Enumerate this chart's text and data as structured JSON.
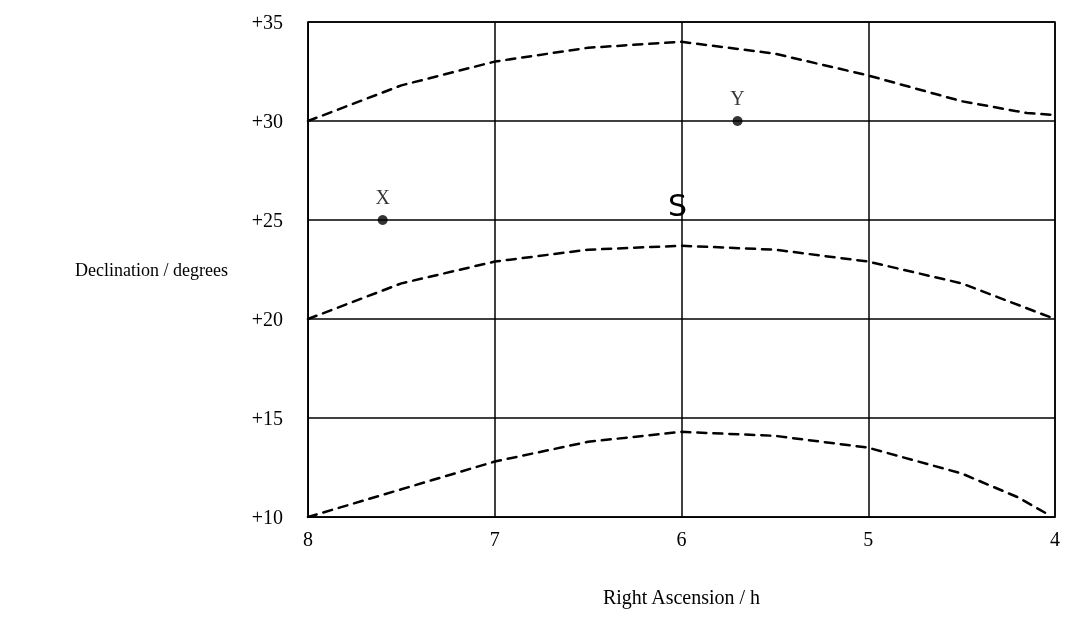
{
  "chart_data": {
    "type": "line",
    "xlabel": "Right Ascension / h",
    "ylabel": "Declination / degrees",
    "xlim": [
      8,
      4
    ],
    "xticks": [
      8,
      7,
      6,
      5,
      4
    ],
    "ylim": [
      10,
      35
    ],
    "yticks": [
      {
        "value": 10,
        "label": "+10"
      },
      {
        "value": 15,
        "label": "+15"
      },
      {
        "value": 20,
        "label": "+20"
      },
      {
        "value": 25,
        "label": "+25"
      },
      {
        "value": 30,
        "label": "+30"
      },
      {
        "value": 35,
        "label": "+35"
      }
    ],
    "grid": true,
    "line_style": "dashed",
    "series": [
      {
        "marker": "none",
        "color": "#000000",
        "x": [
          8,
          7.5,
          7,
          6.5,
          6,
          5.5,
          5,
          4.5,
          4.15,
          4
        ],
        "values": [
          30,
          31.8,
          33,
          33.7,
          34,
          33.4,
          32.3,
          31,
          30.4,
          30.3
        ]
      },
      {
        "marker": "none",
        "color": "#000000",
        "x": [
          8,
          7.5,
          7,
          6.5,
          6,
          5.5,
          5,
          4.5,
          4
        ],
        "values": [
          20,
          21.8,
          22.9,
          23.5,
          23.7,
          23.5,
          22.9,
          21.8,
          20
        ]
      },
      {
        "marker": "none",
        "color": "#000000",
        "x": [
          8,
          7.5,
          7,
          6.5,
          6,
          5.5,
          5,
          4.5,
          4.2,
          4.05
        ],
        "values": [
          10,
          11.4,
          12.8,
          13.8,
          14.3,
          14.1,
          13.5,
          12.2,
          11,
          10.2
        ]
      },
      {
        "type": "scatter",
        "name": "X",
        "marker": "circle",
        "color": "#000000",
        "x": [
          7.6
        ],
        "values": [
          25
        ]
      },
      {
        "type": "scatter",
        "name": "Y",
        "marker": "circle",
        "color": "#000000",
        "x": [
          5.7
        ],
        "values": [
          30
        ]
      }
    ],
    "annotations": [
      "S"
    ]
  }
}
